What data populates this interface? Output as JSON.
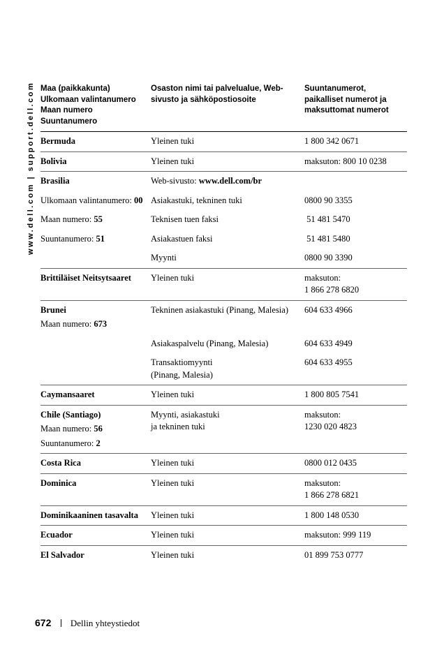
{
  "sidebar": "www.dell.com | support.dell.com",
  "headers": {
    "col1": "Maa (paikkakunta)\nUlkomaan valintanumero\nMaan numero\nSuuntanumero",
    "col2": "Osaston nimi tai palvelualue, Web-sivusto ja sähköpostiosoite",
    "col3": "Suuntanumerot, paikalliset numerot ja maksuttomat numerot"
  },
  "rows": [
    {
      "sep": true,
      "c1": "<b>Bermuda</b>",
      "c2": "Yleinen tuki",
      "c3": "1 800 342 0671"
    },
    {
      "sep": true,
      "c1": "<b>Bolivia</b>",
      "c2": "Yleinen tuki",
      "c3": "maksuton: 800 10 0238"
    },
    {
      "sep": true,
      "c1": "<b>Brasilia</b>",
      "c2": "Web-sivusto: <b>www.dell.com/br</b>",
      "c3": ""
    },
    {
      "sep": false,
      "c1": "Ulkomaan valintanumero: <b>00</b>",
      "c2": "Asiakastuki, tekninen tuki",
      "c3": "0800 90 3355"
    },
    {
      "sep": false,
      "c1": "Maan numero: <b>55</b>",
      "c2": "Teknisen tuen faksi",
      "c3": "&nbsp;51 481 5470"
    },
    {
      "sep": false,
      "c1": "Suuntanumero: <b>51</b>",
      "c2": "Asiakastuen faksi",
      "c3": "&nbsp;51 481 5480"
    },
    {
      "sep": false,
      "c1": "",
      "c2": "Myynti",
      "c3": "0800 90 3390"
    },
    {
      "sep": true,
      "c1": "<b>Brittiläiset Neitsytsaaret</b>",
      "c2": "Yleinen tuki",
      "c3": "maksuton:<br>1 866 278 6820"
    },
    {
      "sep": true,
      "c1": "<b>Brunei</b><span class=\"sub\">Maan numero: <b>673</b></span>",
      "c2": "Tekninen asiakastuki (Pinang, Malesia)",
      "c3": "604 633 4966"
    },
    {
      "sep": false,
      "c1": "",
      "c2": "Asiakaspalvelu (Pinang, Malesia)",
      "c3": "604 633 4949"
    },
    {
      "sep": false,
      "c1": "",
      "c2": "Transaktiomyynti<br>(Pinang, Malesia)",
      "c3": "604 633 4955"
    },
    {
      "sep": true,
      "c1": "<b>Caymansaaret</b>",
      "c2": "Yleinen tuki",
      "c3": "1 800 805 7541"
    },
    {
      "sep": true,
      "c1": "<b>Chile (Santiago)</b><span class=\"sub\">Maan numero: <b>56</b></span><span class=\"sub\">Suuntanumero: <b>2</b></span>",
      "c2": "Myynti, asiakastuki<br>ja tekninen tuki",
      "c3": "maksuton:<br>1230 020 4823"
    },
    {
      "sep": true,
      "c1": "<b>Costa Rica</b>",
      "c2": "Yleinen tuki",
      "c3": "0800 012 0435"
    },
    {
      "sep": true,
      "c1": "<b>Dominica</b>",
      "c2": "Yleinen tuki",
      "c3": "maksuton:<br>1 866 278 6821"
    },
    {
      "sep": true,
      "c1": "<b>Dominikaaninen tasavalta</b>",
      "c2": "Yleinen tuki",
      "c3": "1 800 148 0530"
    },
    {
      "sep": true,
      "c1": "<b>Ecuador</b>",
      "c2": "Yleinen tuki",
      "c3": "maksuton: 999 119"
    },
    {
      "sep": true,
      "c1": "<b>El Salvador</b>",
      "c2": "Yleinen tuki",
      "c3": "01 899 753 0777"
    }
  ],
  "footer": {
    "page": "672",
    "title": "Dellin yhteystiedot"
  }
}
